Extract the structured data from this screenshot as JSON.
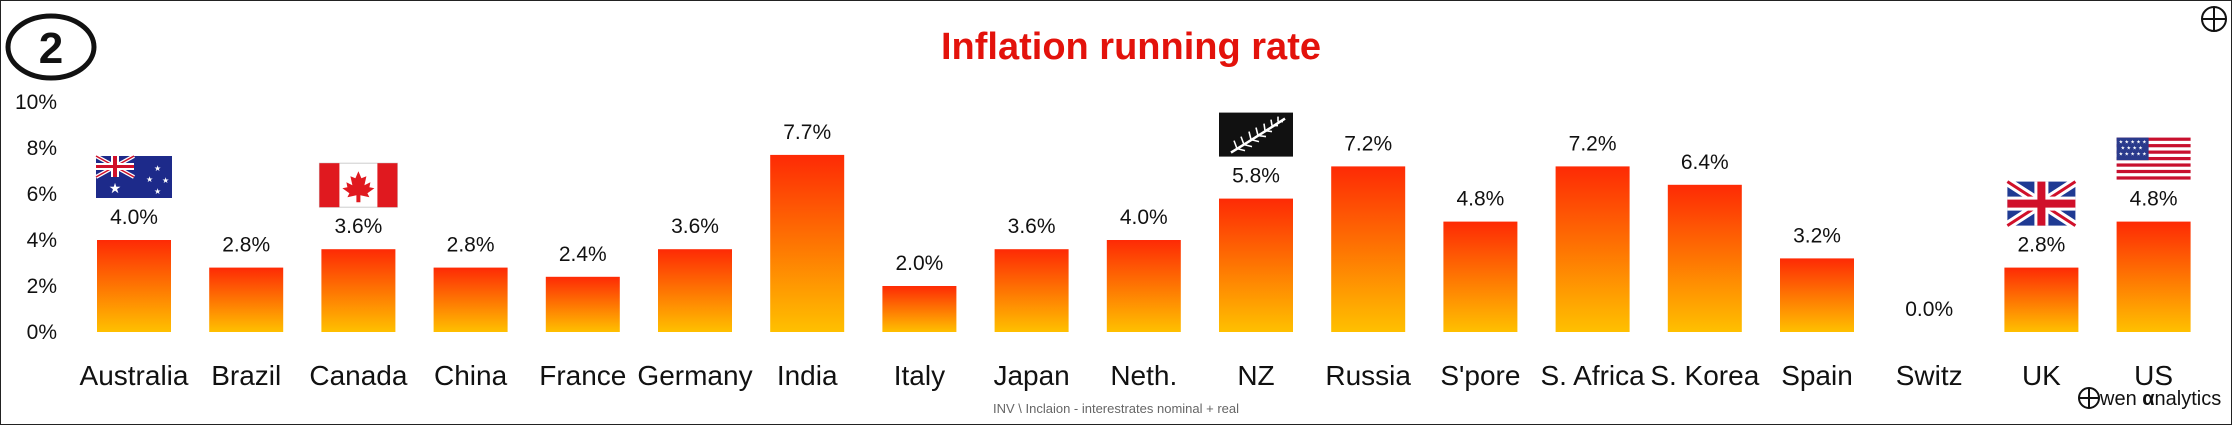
{
  "badge_number": "2",
  "footer_note": "INV \\ Inclaion - interestrates nominal + real",
  "brand": {
    "o_letter": "O",
    "rest": "wen ",
    "alpha": "α",
    "tail": "nalytics"
  },
  "colors": {
    "title": "#e3120b",
    "bar_top": "#fe2a05",
    "bar_bottom": "#ffc000"
  },
  "chart_data": {
    "type": "bar",
    "title": "Inflation running rate",
    "xlabel": "",
    "ylabel": "",
    "ylim": [
      0,
      10
    ],
    "yticks": [
      "0%",
      "2%",
      "4%",
      "6%",
      "8%",
      "10%"
    ],
    "grid": false,
    "categories": [
      "Australia",
      "Brazil",
      "Canada",
      "China",
      "France",
      "Germany",
      "India",
      "Italy",
      "Japan",
      "Neth.",
      "NZ",
      "Russia",
      "S'pore",
      "S. Africa",
      "S. Korea",
      "Spain",
      "Switz",
      "UK",
      "US"
    ],
    "values": [
      4.0,
      2.8,
      3.6,
      2.8,
      2.4,
      3.6,
      7.7,
      2.0,
      3.6,
      4.0,
      5.8,
      7.2,
      4.8,
      7.2,
      6.4,
      3.2,
      0.0,
      2.8,
      4.8
    ],
    "data_labels": [
      "4.0%",
      "2.8%",
      "3.6%",
      "2.8%",
      "2.4%",
      "3.6%",
      "7.7%",
      "2.0%",
      "3.6%",
      "4.0%",
      "5.8%",
      "7.2%",
      "4.8%",
      "7.2%",
      "6.4%",
      "3.2%",
      "0.0%",
      "2.8%",
      "4.8%"
    ],
    "flags": [
      {
        "category": "Australia",
        "icon": "australia-flag-icon"
      },
      {
        "category": "Canada",
        "icon": "canada-flag-icon"
      },
      {
        "category": "NZ",
        "icon": "silver-fern-flag-icon"
      },
      {
        "category": "UK",
        "icon": "uk-flag-icon"
      },
      {
        "category": "US",
        "icon": "us-flag-icon"
      }
    ]
  }
}
